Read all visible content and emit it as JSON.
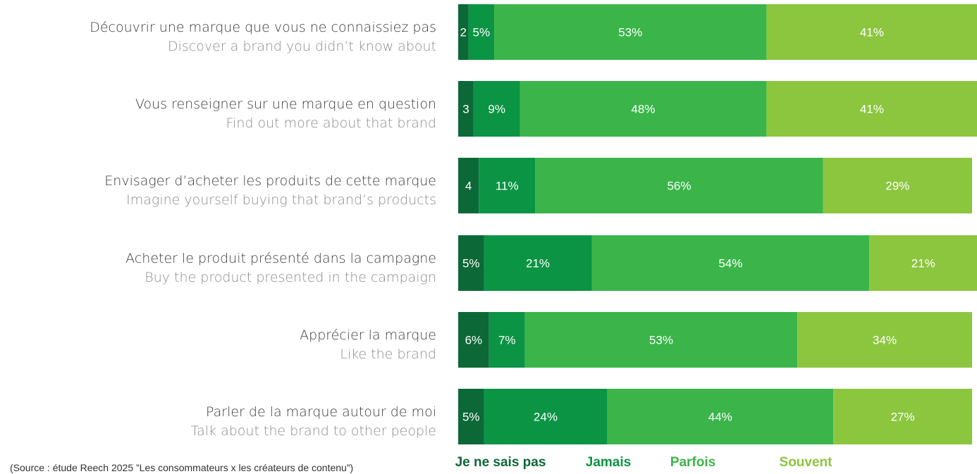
{
  "chart_data": {
    "type": "bar",
    "orientation": "horizontal",
    "stacked": true,
    "categories": [
      {
        "fr": "Découvrir une marque que vous ne connaissiez pas",
        "en": "Discover a brand you didn’t know about"
      },
      {
        "fr": "Vous renseigner sur une marque en question",
        "en": "Find out more about that brand"
      },
      {
        "fr": "Envisager d’acheter les produits de cette marque",
        "en": "Imagine yourself buying that brand’s products"
      },
      {
        "fr": "Acheter le produit présenté dans la campagne",
        "en": "Buy the product presented in the campaign"
      },
      {
        "fr": "Apprécier la marque",
        "en": "Like the brand"
      },
      {
        "fr": "Parler de la marque autour de moi",
        "en": "Talk about the brand to other people"
      }
    ],
    "series": [
      {
        "name": "Je ne sais pas",
        "color": "#0d6837",
        "values": [
          2,
          3,
          4,
          5,
          6,
          5
        ],
        "labels": [
          "2",
          "3",
          "4",
          "5%",
          "6%",
          "5%"
        ]
      },
      {
        "name": "Jamais",
        "color": "#0b9444",
        "values": [
          5,
          9,
          11,
          21,
          7,
          24
        ],
        "labels": [
          "5%",
          "9%",
          "11%",
          "21%",
          "7%",
          "24%"
        ]
      },
      {
        "name": "Parfois",
        "color": "#3bb54a",
        "values": [
          53,
          48,
          56,
          54,
          53,
          44
        ],
        "labels": [
          "53%",
          "48%",
          "56%",
          "54%",
          "53%",
          "44%"
        ]
      },
      {
        "name": "Souvent",
        "color": "#8cc63f",
        "values": [
          41,
          41,
          29,
          21,
          34,
          27
        ],
        "labels": [
          "41%",
          "41%",
          "29%",
          "21%",
          "34%",
          "27%"
        ]
      }
    ],
    "xlim": [
      0,
      100
    ],
    "legend_position": "bottom",
    "grid": false
  },
  "source": "(Source : étude Reech 2025 ”Les consommateurs x les créateurs de contenu”)"
}
